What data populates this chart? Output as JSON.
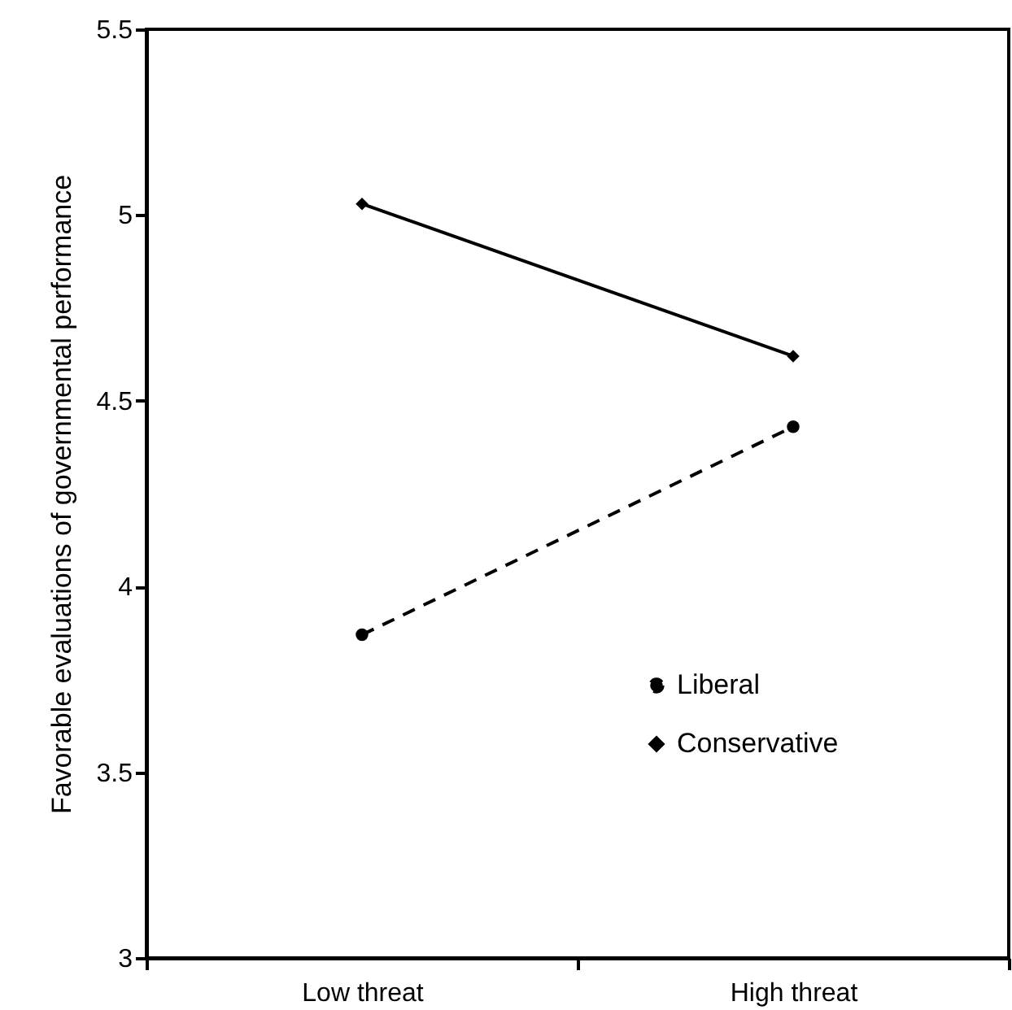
{
  "chart_data": {
    "type": "line",
    "ylabel": "Favorable evaluations of governmental performance",
    "categories": [
      "Low threat",
      "High threat"
    ],
    "series": [
      {
        "name": "Liberal",
        "color": "#000000",
        "values": [
          3.87,
          4.43
        ],
        "marker": "circle",
        "line_style": "dashed"
      },
      {
        "name": "Conservative",
        "color": "#000000",
        "values": [
          5.03,
          4.62
        ],
        "marker": "diamond",
        "line_style": "solid"
      }
    ],
    "ylim": [
      3,
      5.5
    ],
    "yticks": [
      3,
      3.5,
      4,
      4.5,
      5,
      5.5
    ],
    "grid": false,
    "legend": "bottom right"
  }
}
